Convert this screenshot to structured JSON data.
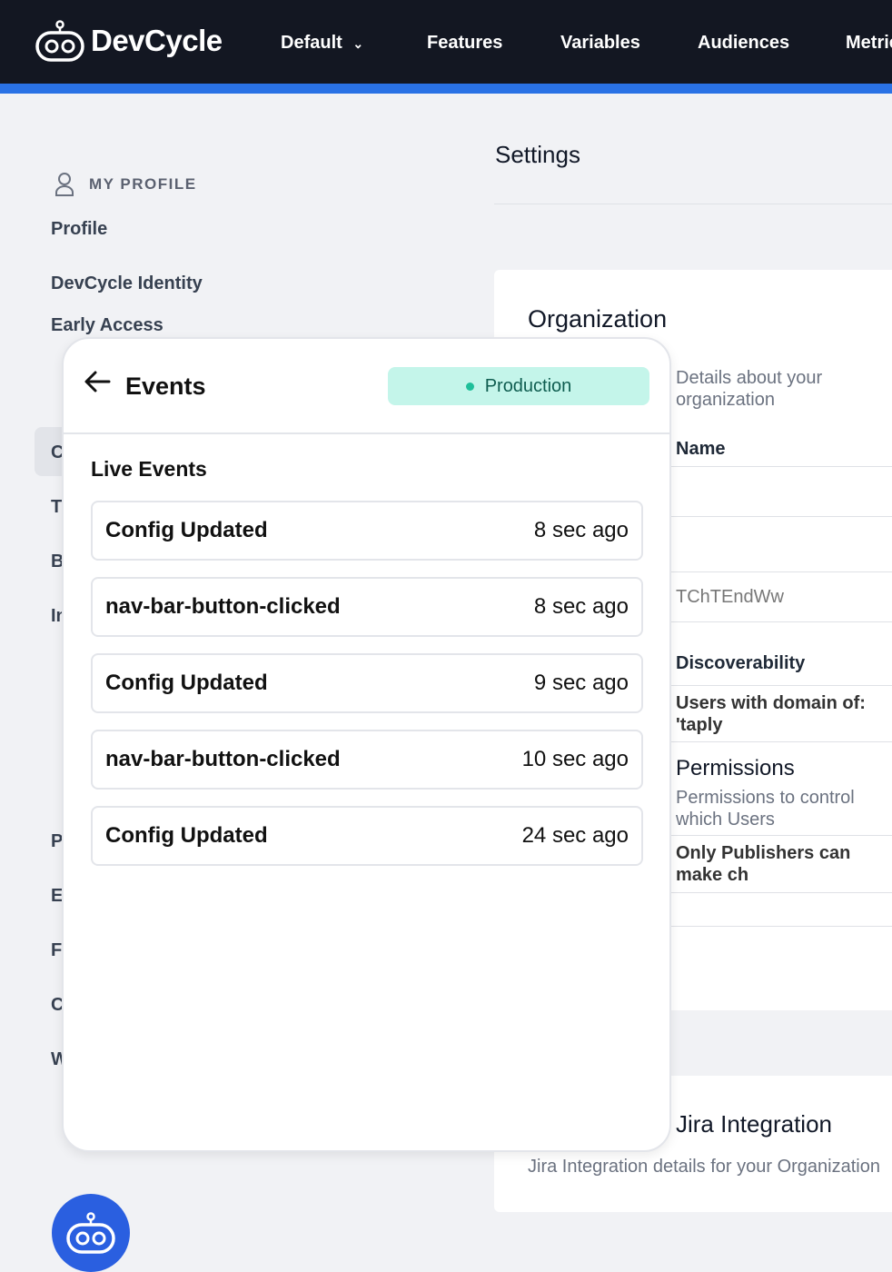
{
  "nav": {
    "brand": "DevCycle",
    "project": "Default",
    "items": [
      "Features",
      "Variables",
      "Audiences",
      "Metrics"
    ]
  },
  "sidebar": {
    "section": "MY PROFILE",
    "items": [
      "Profile",
      "DevCycle Identity",
      "Early Access"
    ],
    "partial_items": [
      "C",
      "T",
      "B",
      "In",
      "P",
      "E",
      "F",
      "C",
      "W"
    ]
  },
  "settings": {
    "title": "Settings",
    "org_title": "Organization",
    "org_desc": "Details about your organization",
    "name_label": "Name",
    "client_id": "TChTEndWw",
    "discoverability_label": "Discoverability",
    "discoverability_value": "Users with domain of: 'taply",
    "permissions_label": "Permissions",
    "permissions_desc": "Permissions to control which Users",
    "permissions_value": "Only Publishers can make ch",
    "jira_title": "Jira Integration",
    "jira_desc": "Jira Integration details for your Organization"
  },
  "events": {
    "title": "Events",
    "environment": "Production",
    "section": "Live Events",
    "items": [
      {
        "name": "Config Updated",
        "time": "8 sec ago"
      },
      {
        "name": "nav-bar-button-clicked",
        "time": "8 sec ago"
      },
      {
        "name": "Config Updated",
        "time": "9 sec ago"
      },
      {
        "name": "nav-bar-button-clicked",
        "time": "10 sec ago"
      },
      {
        "name": "Config Updated",
        "time": "24 sec ago"
      }
    ]
  },
  "colors": {
    "nav": "#131722",
    "accent": "#2a72e5",
    "environment_bg": "#c4f5ea",
    "fab": "#2a5fe0"
  }
}
